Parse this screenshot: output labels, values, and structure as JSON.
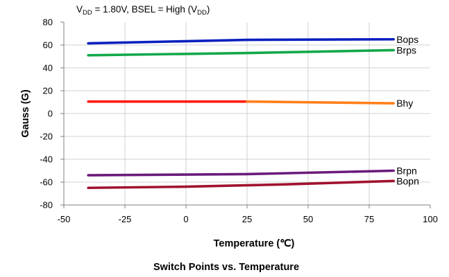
{
  "chart_data": {
    "type": "line",
    "title": "Switch Points  vs. Temperature",
    "condition": {
      "v": "V",
      "v_sub": "DD",
      "mid": " = 1.80V, BSEL = High (V",
      "paren_sub": "DD",
      "end": ")"
    },
    "xlabel": "Temperature (℃)",
    "ylabel": "Gauss (G)",
    "xlim": [
      -50,
      100
    ],
    "ylim": [
      -80,
      80
    ],
    "xticks": [
      -50,
      -25,
      0,
      25,
      50,
      75,
      100
    ],
    "yticks": [
      -80,
      -60,
      -40,
      -20,
      0,
      20,
      40,
      60,
      80
    ],
    "grid": true,
    "series": [
      {
        "name": "Bops",
        "color": "#0a1fbf",
        "segments": [
          {
            "x": [
              -40,
              25,
              85
            ],
            "y": [
              61.5,
              64.5,
              65
            ]
          }
        ]
      },
      {
        "name": "Brps",
        "color": "#12a84a",
        "segments": [
          {
            "x": [
              -40,
              25,
              85
            ],
            "y": [
              51,
              53,
              55.5
            ]
          }
        ]
      },
      {
        "name": "Bhy",
        "color": "#ff1a0d",
        "segments": [
          {
            "x": [
              -40,
              25
            ],
            "y": [
              10.5,
              10.5
            ],
            "color": "#ff1a0d"
          },
          {
            "x": [
              25,
              85
            ],
            "y": [
              10.5,
              9
            ],
            "color": "#ff7f1a"
          }
        ]
      },
      {
        "name": "Brpn",
        "color": "#6a1a7a",
        "segments": [
          {
            "x": [
              -40,
              25,
              85
            ],
            "y": [
              -54,
              -53,
              -50
            ]
          }
        ]
      },
      {
        "name": "Bopn",
        "color": "#a0122e",
        "segments": [
          {
            "x": [
              -40,
              0,
              40,
              85
            ],
            "y": [
              -65,
              -64,
              -62,
              -59
            ]
          }
        ]
      }
    ]
  }
}
